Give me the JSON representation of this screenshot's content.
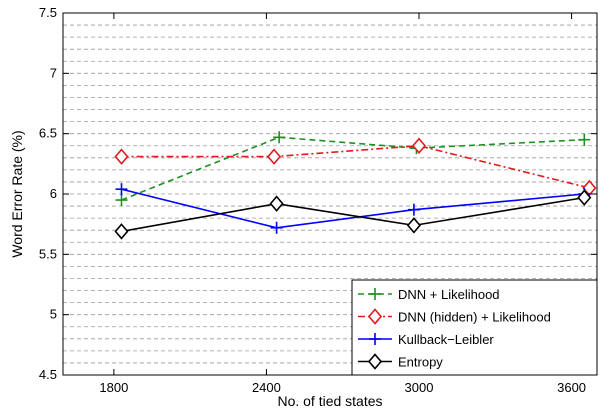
{
  "chart_data": {
    "type": "line",
    "xlabel": "No. of tied states",
    "ylabel": "Word Error Rate (%)",
    "xlim": [
      1600,
      3700
    ],
    "ylim": [
      4.5,
      7.5
    ],
    "xticks": [
      1800,
      2400,
      3000,
      3600
    ],
    "yticks": [
      4.5,
      5,
      5.5,
      6,
      6.5,
      7,
      7.5
    ],
    "ytick_labels": [
      "4.5",
      "5",
      "5.5",
      "6",
      "6.5",
      "7",
      "7.5"
    ],
    "grid": "horizontal-dashed",
    "legend_position": "bottom-right",
    "series": [
      {
        "name": "DNN + Likelihood",
        "color": "#1f8f1f",
        "dash": "dashed",
        "marker": "plus",
        "x": [
          1830,
          2450,
          2990,
          3650
        ],
        "y": [
          5.95,
          6.47,
          6.38,
          6.45
        ]
      },
      {
        "name": "DNN (hidden) + Likelihood",
        "color": "#e31a1c",
        "dash": "dashdot",
        "marker": "diamond",
        "x": [
          1830,
          2430,
          3000,
          3670
        ],
        "y": [
          6.31,
          6.31,
          6.4,
          6.05
        ]
      },
      {
        "name": "Kullback−Leibler",
        "color": "#0000ff",
        "dash": "solid",
        "marker": "plus",
        "x": [
          1830,
          2440,
          2980,
          3650
        ],
        "y": [
          6.04,
          5.72,
          5.87,
          6.0
        ]
      },
      {
        "name": "Entropy",
        "color": "#000000",
        "dash": "solid",
        "marker": "diamond",
        "x": [
          1830,
          2440,
          2980,
          3650
        ],
        "y": [
          5.69,
          5.92,
          5.74,
          5.97
        ]
      }
    ]
  }
}
